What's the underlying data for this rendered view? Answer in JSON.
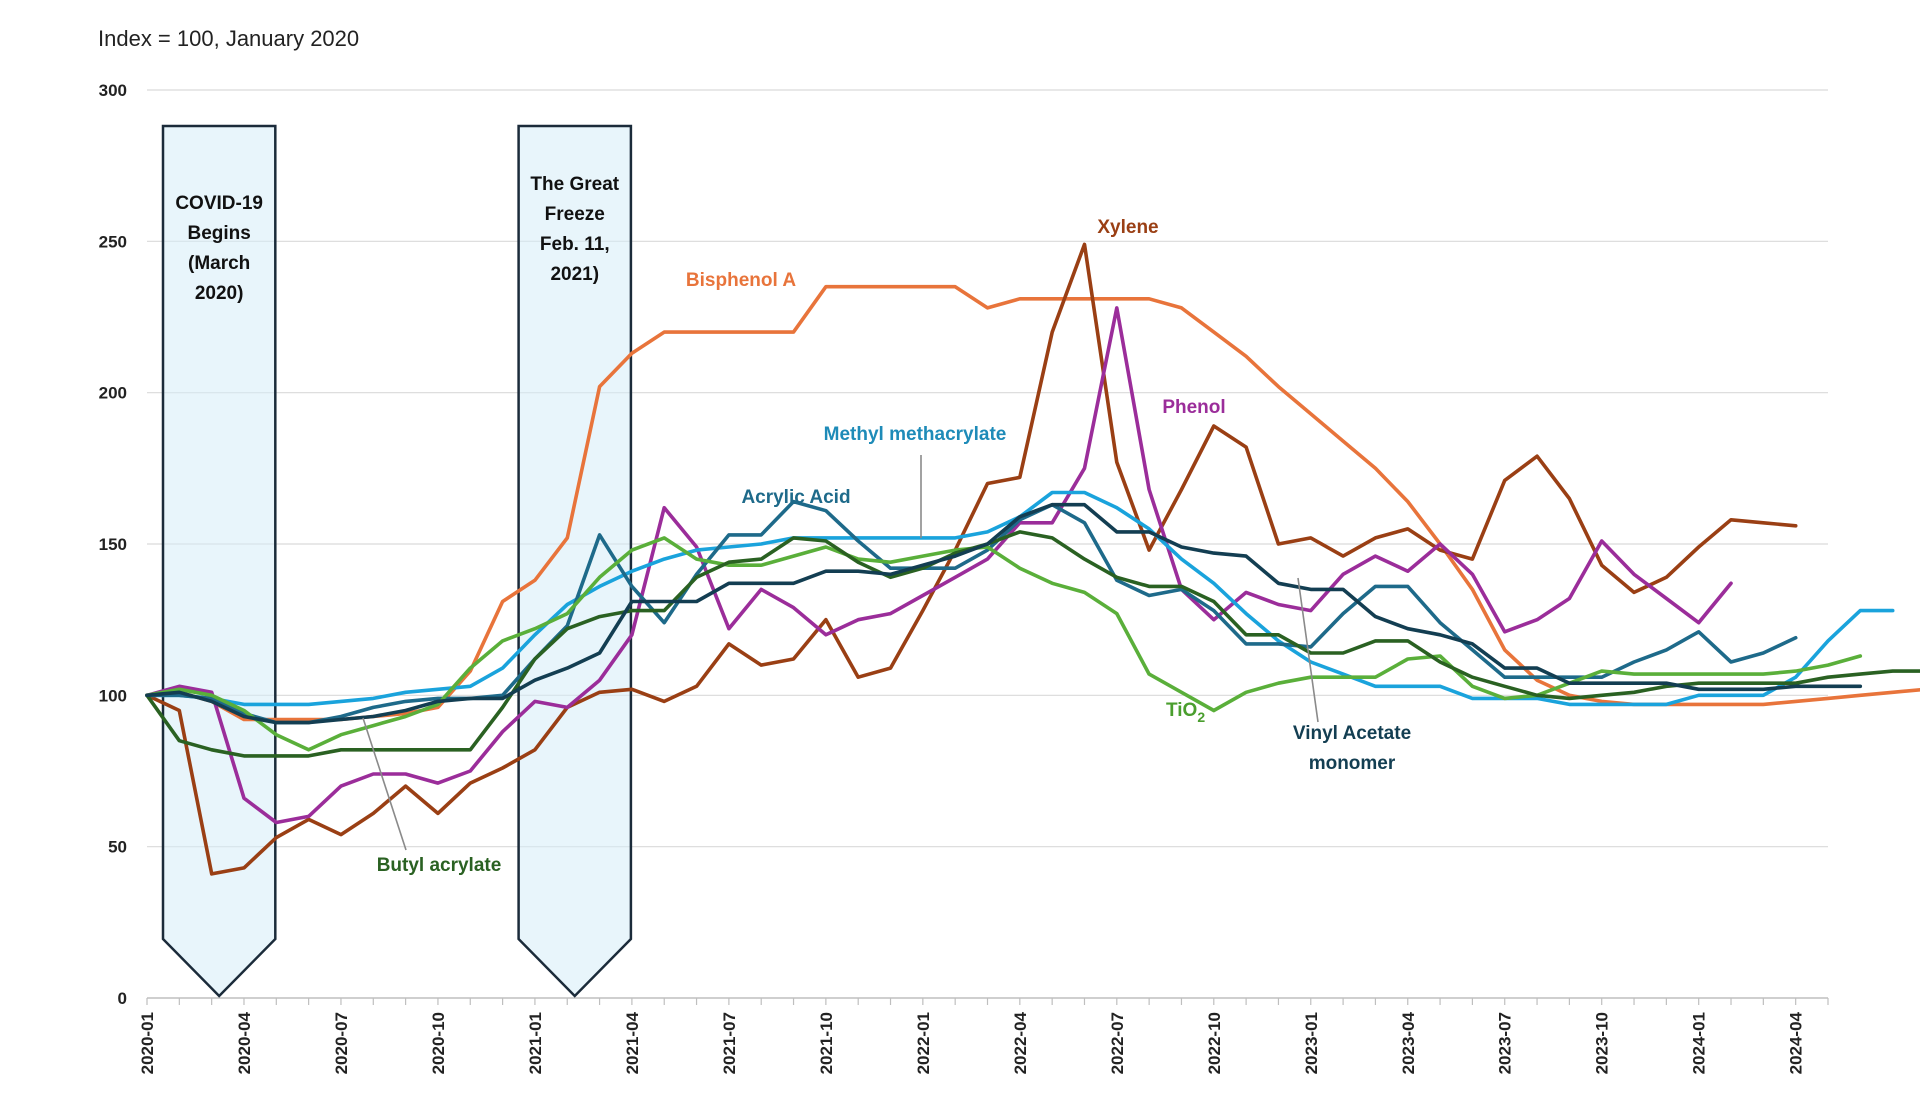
{
  "chart_data": {
    "type": "line",
    "subtitle": "Index = 100, January 2020",
    "ylim": [
      0,
      300
    ],
    "y_ticks": [
      0,
      50,
      100,
      150,
      200,
      250,
      300
    ],
    "x_tick_labels": [
      "2020-01",
      "2020-04",
      "2020-07",
      "2020-10",
      "2021-01",
      "2021-04",
      "2021-07",
      "2021-10",
      "2022-01",
      "2022-04",
      "2022-07",
      "2022-10",
      "2023-01",
      "2023-04",
      "2023-07",
      "2023-10",
      "2024-01",
      "2024-04"
    ],
    "grid": "horizontal",
    "events": [
      {
        "lines": [
          "COVID-19",
          "Begins",
          "(March",
          "2020)"
        ],
        "start": "2020-01",
        "end": "2020-05"
      },
      {
        "lines": [
          "The Great",
          "Freeze",
          "Feb. 11,",
          "2021)"
        ],
        "start": "2020-12",
        "end": "2021-04"
      }
    ],
    "series": [
      {
        "name": "Bisphenol A",
        "color": "#E8743B",
        "values": [
          100,
          101,
          98,
          92,
          92,
          92,
          92,
          93,
          94,
          96,
          108,
          131,
          138,
          152,
          202,
          213,
          220,
          220,
          220,
          220,
          220,
          235,
          235,
          235,
          235,
          235,
          228,
          231,
          231,
          231,
          231,
          231,
          228,
          220,
          212,
          202,
          193,
          184,
          175,
          164,
          150,
          135,
          115,
          105,
          100,
          98,
          97,
          97,
          97,
          97,
          97,
          98,
          99,
          100,
          101,
          102,
          103
        ]
      },
      {
        "name": "Xylene",
        "color": "#9A3F14",
        "values": [
          100,
          95,
          41,
          43,
          53,
          59,
          54,
          61,
          70,
          61,
          71,
          76,
          82,
          96,
          101,
          102,
          98,
          103,
          117,
          110,
          112,
          125,
          106,
          109,
          128,
          148,
          170,
          172,
          220,
          249,
          177,
          148,
          168,
          189,
          182,
          150,
          152,
          146,
          152,
          155,
          148,
          145,
          171,
          179,
          165,
          143,
          134,
          139,
          149,
          158,
          157,
          156
        ]
      },
      {
        "name": "Phenol",
        "color": "#9B2D9A",
        "values": [
          100,
          103,
          101,
          66,
          58,
          60,
          70,
          74,
          74,
          71,
          75,
          88,
          98,
          96,
          105,
          120,
          162,
          149,
          122,
          135,
          129,
          120,
          125,
          127,
          133,
          139,
          145,
          157,
          157,
          175,
          228,
          168,
          135,
          125,
          134,
          130,
          128,
          140,
          146,
          141,
          150,
          140,
          121,
          125,
          132,
          151,
          140,
          132,
          124,
          137
        ]
      },
      {
        "name": "Methyl methacrylate",
        "color": "#1AA3DC",
        "values": [
          100,
          100,
          99,
          97,
          97,
          97,
          98,
          99,
          101,
          102,
          103,
          109,
          120,
          130,
          136,
          141,
          145,
          148,
          149,
          150,
          152,
          152,
          152,
          152,
          152,
          152,
          154,
          159,
          167,
          167,
          162,
          155,
          145,
          137,
          127,
          118,
          111,
          107,
          103,
          103,
          103,
          99,
          99,
          99,
          97,
          97,
          97,
          97,
          100,
          100,
          100,
          106,
          118,
          128,
          128
        ]
      },
      {
        "name": "Acrylic Acid",
        "color": "#1E6A8A",
        "values": [
          100,
          100,
          99,
          94,
          91,
          91,
          93,
          96,
          98,
          99,
          99,
          100,
          112,
          123,
          153,
          136,
          124,
          140,
          153,
          153,
          164,
          161,
          151,
          142,
          142,
          142,
          148,
          158,
          163,
          157,
          138,
          133,
          135,
          128,
          117,
          117,
          116,
          127,
          136,
          136,
          124,
          115,
          106,
          106,
          106,
          106,
          111,
          115,
          121,
          111,
          114,
          119
        ]
      },
      {
        "name": "TiO2",
        "color": "#5AAF3A",
        "values": [
          100,
          102,
          100,
          95,
          87,
          82,
          87,
          90,
          93,
          97,
          109,
          118,
          122,
          127,
          139,
          148,
          152,
          145,
          143,
          143,
          146,
          149,
          145,
          144,
          146,
          148,
          149,
          142,
          137,
          134,
          127,
          107,
          101,
          95,
          101,
          104,
          106,
          106,
          106,
          112,
          113,
          103,
          99,
          100,
          104,
          108,
          107,
          107,
          107,
          107,
          107,
          108,
          110,
          113
        ]
      },
      {
        "name": "Butyl acrylate",
        "color": "#2A6122",
        "values": [
          100,
          85,
          82,
          80,
          80,
          80,
          82,
          82,
          82,
          82,
          82,
          96,
          112,
          122,
          126,
          128,
          128,
          139,
          144,
          145,
          152,
          151,
          144,
          139,
          142,
          147,
          150,
          154,
          152,
          145,
          139,
          136,
          136,
          131,
          120,
          120,
          114,
          114,
          118,
          118,
          111,
          106,
          103,
          100,
          99,
          100,
          101,
          103,
          104,
          104,
          104,
          104,
          106,
          107,
          108,
          108
        ]
      },
      {
        "name": "Vinyl Acetate\nmonomer",
        "color": "#133E52",
        "values": [
          100,
          101,
          98,
          93,
          91,
          91,
          92,
          93,
          95,
          98,
          99,
          99,
          105,
          109,
          114,
          131,
          131,
          131,
          137,
          137,
          137,
          141,
          141,
          140,
          143,
          146,
          150,
          159,
          163,
          163,
          154,
          154,
          149,
          147,
          146,
          137,
          135,
          135,
          126,
          122,
          120,
          117,
          109,
          109,
          104,
          104,
          104,
          104,
          102,
          102,
          102,
          103,
          103,
          103
        ]
      }
    ],
    "series_labels": [
      {
        "text": "Bisphenol A",
        "color": "#E8743B"
      },
      {
        "text": "Xylene",
        "color": "#9A3F14"
      },
      {
        "text": "Phenol",
        "color": "#9B2D9A"
      },
      {
        "text": "Methyl methacrylate",
        "color": "#1E8BB8"
      },
      {
        "text": "Acrylic Acid",
        "color": "#1E6A8A"
      },
      {
        "text": "TiO",
        "sub": "2",
        "color": "#4A9E2E"
      },
      {
        "text": "Butyl acrylate",
        "color": "#2A6122"
      },
      {
        "line1": "Vinyl Acetate",
        "line2": "monomer",
        "color": "#133E52"
      }
    ]
  }
}
